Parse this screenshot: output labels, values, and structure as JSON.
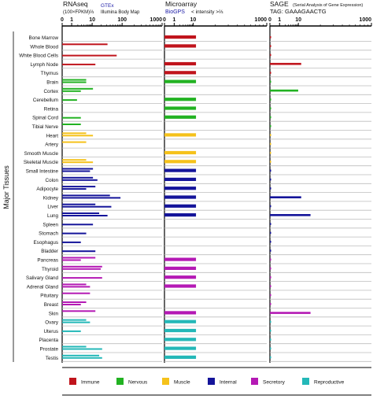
{
  "figure": {
    "side_label": "Major Tissues"
  },
  "panels": [
    {
      "title": "RNAseq",
      "subtitle": "(100×FPKM)⅔",
      "source_a": "GTEx",
      "source_b": "Illumina Body Map",
      "ticks": [
        "0",
        "1",
        "10",
        "100",
        "1000"
      ]
    },
    {
      "title": "Microarray",
      "source_a": "BioGPS",
      "axis_note": "< intensity >⅔",
      "ticks": [
        "0",
        "1",
        "10",
        "1000"
      ]
    },
    {
      "title": "SAGE",
      "title_note": "(Serial Analysis of Gene Expression)",
      "tag": "TAG: GAAAGAACTG",
      "ticks": [
        "0",
        "1",
        "10",
        "1000"
      ]
    }
  ],
  "legend": [
    {
      "label": "Immune",
      "color": "#c0141c"
    },
    {
      "label": "Nervous",
      "color": "#22b222"
    },
    {
      "label": "Muscle",
      "color": "#f5c21b"
    },
    {
      "label": "Internal",
      "color": "#14149a"
    },
    {
      "label": "Secretory",
      "color": "#b419b4"
    },
    {
      "label": "Reproductive",
      "color": "#24b8b8"
    }
  ],
  "chart_data": {
    "type": "bar",
    "orientation": "horizontal",
    "xscale": "log",
    "xlim": [
      0,
      1000
    ],
    "categories": [
      "Bone Marrow",
      "Whole Blood",
      "White Blood Cells",
      "Lymph Node",
      "Thymus",
      "Brain",
      "Cortex",
      "Cerebellum",
      "Retina",
      "Spinal Cord",
      "Tibial Nerve",
      "Heart",
      "Artery",
      "Smooth Muscle",
      "Skeletal Muscle",
      "Small Intestine",
      "Colon",
      "Adipocyte",
      "Kidney",
      "Liver",
      "Lung",
      "Spleen",
      "Stomach",
      "Esophagus",
      "Bladder",
      "Pancreas",
      "Thyroid",
      "Salivary Gland",
      "Adrenal Gland",
      "Pituitary",
      "Breast",
      "Skin",
      "Ovary",
      "Uterus",
      "Placenta",
      "Prostate",
      "Testis"
    ],
    "groups": [
      "Immune",
      "Immune",
      "Immune",
      "Immune",
      "Immune",
      "Nervous",
      "Nervous",
      "Nervous",
      "Nervous",
      "Nervous",
      "Nervous",
      "Muscle",
      "Muscle",
      "Muscle",
      "Muscle",
      "Internal",
      "Internal",
      "Internal",
      "Internal",
      "Internal",
      "Internal",
      "Internal",
      "Internal",
      "Internal",
      "Internal",
      "Secretory",
      "Secretory",
      "Secretory",
      "Secretory",
      "Secretory",
      "Secretory",
      "Secretory",
      "Reproductive",
      "Reproductive",
      "Reproductive",
      "Reproductive",
      "Reproductive"
    ],
    "series": [
      {
        "name": "GTEx",
        "values": [
          null,
          15,
          null,
          null,
          null,
          3,
          5,
          null,
          null,
          null,
          2,
          3,
          3,
          null,
          3,
          5,
          5,
          6,
          18,
          6,
          8,
          null,
          null,
          null,
          null,
          6,
          10,
          null,
          3,
          4,
          3,
          6,
          3,
          null,
          null,
          3,
          8
        ]
      },
      {
        "name": "Illumina Body Map",
        "values": [
          null,
          null,
          30,
          6,
          null,
          3,
          2,
          1.5,
          null,
          2,
          null,
          5,
          null,
          null,
          5,
          4,
          7,
          3,
          40,
          20,
          15,
          5,
          3,
          2,
          6,
          2,
          9,
          10,
          4,
          null,
          2,
          null,
          4,
          2,
          null,
          10,
          10
        ]
      },
      {
        "name": "BioGPS",
        "values": [
          5,
          5,
          null,
          5,
          5,
          5,
          null,
          5,
          5,
          5,
          null,
          5,
          null,
          5,
          5,
          5,
          5,
          5,
          5,
          5,
          5,
          null,
          null,
          null,
          null,
          5,
          5,
          5,
          5,
          null,
          null,
          5,
          5,
          5,
          5,
          5,
          5
        ]
      },
      {
        "name": "SAGE",
        "values": [
          0.05,
          0.05,
          0.05,
          5,
          0.05,
          0.05,
          4,
          0.05,
          0.05,
          0.05,
          0.05,
          0.05,
          0.05,
          0.05,
          0.05,
          0.05,
          0.05,
          0.05,
          5,
          0.1,
          10,
          0.05,
          0.05,
          0.05,
          0.05,
          0.05,
          0.05,
          0.05,
          0.05,
          0.05,
          0.05,
          10,
          0.05,
          0.05,
          0.05,
          0.05,
          0.05
        ]
      }
    ]
  }
}
